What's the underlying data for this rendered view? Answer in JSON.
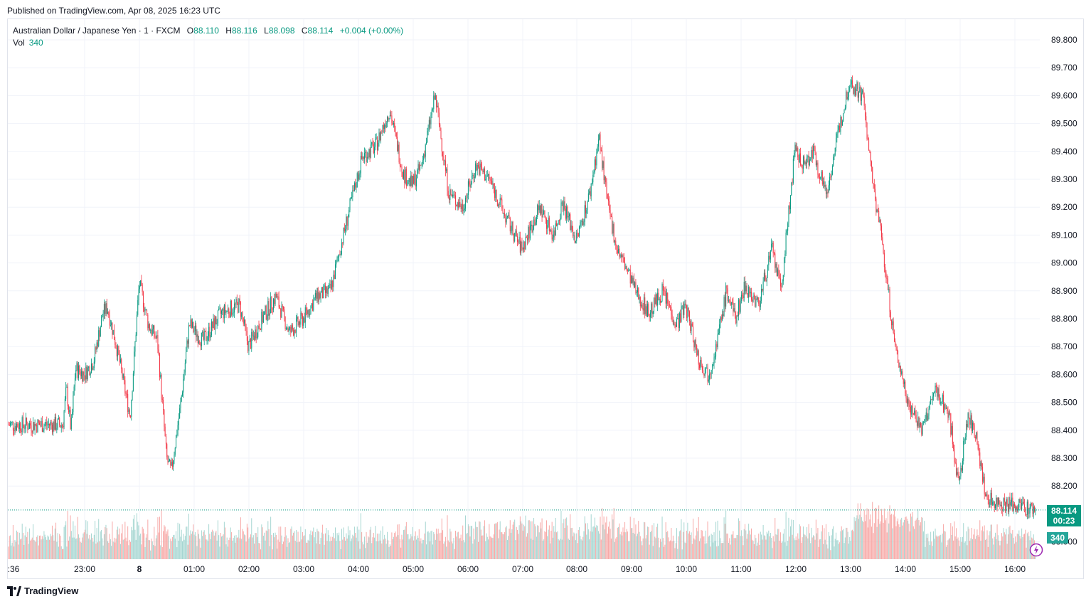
{
  "header": {
    "published": "Published on TradingView.com, Apr 08, 2025 16:23 UTC"
  },
  "legend": {
    "symbol": "Australian Dollar / Japanese Yen · 1 · FXCM",
    "open_label": "O",
    "open": "88.110",
    "high_label": "H",
    "high": "88.116",
    "low_label": "L",
    "low": "88.098",
    "close_label": "C",
    "close": "88.114",
    "change": "+0.004 (+0.00%)",
    "vol_label": "Vol",
    "vol": "340"
  },
  "footer": {
    "brand": "TradingView"
  },
  "price_tag": {
    "price": "88.114",
    "countdown": "00:23"
  },
  "vol_tag": "340",
  "colors": {
    "up": "#089981",
    "down": "#f23645",
    "vol_up": "#a5d6d1",
    "vol_down": "#f7a9a7",
    "grid": "#f0f3fa"
  },
  "chart_data": {
    "type": "candlestick",
    "y_axis": {
      "ylim": [
        88.0,
        89.85
      ],
      "ticks": [
        "89.800",
        "89.700",
        "89.600",
        "89.500",
        "89.400",
        "89.300",
        "89.200",
        "89.100",
        "89.000",
        "88.900",
        "88.800",
        "88.700",
        "88.600",
        "88.500",
        "88.400",
        "88.300",
        "88.200",
        "88.000"
      ],
      "position": "right"
    },
    "x_axis": {
      "ticks": [
        ":36",
        "23:00",
        "8",
        "01:00",
        "02:00",
        "03:00",
        "04:00",
        "05:00",
        "06:00",
        "07:00",
        "08:00",
        "09:00",
        "10:00",
        "11:00",
        "12:00",
        "13:00",
        "14:00",
        "15:00",
        "16:00"
      ]
    },
    "last_price": 88.114,
    "path": [
      [
        "22:36",
        88.42
      ],
      [
        "22:40",
        88.55
      ],
      [
        "22:45",
        88.4
      ],
      [
        "22:50",
        88.62
      ],
      [
        "23:00",
        88.6
      ],
      [
        "23:10",
        88.65
      ],
      [
        "23:20",
        88.82
      ],
      [
        "23:25",
        88.84
      ],
      [
        "23:35",
        88.7
      ],
      [
        "23:50",
        88.45
      ],
      [
        "00:00",
        88.93
      ],
      [
        "00:10",
        88.78
      ],
      [
        "00:20",
        88.72
      ],
      [
        "00:30",
        88.3
      ],
      [
        "00:35",
        88.25
      ],
      [
        "00:45",
        88.48
      ],
      [
        "00:55",
        88.78
      ],
      [
        "01:10",
        88.72
      ],
      [
        "01:30",
        88.82
      ],
      [
        "01:50",
        88.85
      ],
      [
        "02:00",
        88.7
      ],
      [
        "02:15",
        88.8
      ],
      [
        "02:30",
        88.88
      ],
      [
        "02:45",
        88.75
      ],
      [
        "03:00",
        88.8
      ],
      [
        "03:15",
        88.88
      ],
      [
        "03:30",
        88.9
      ],
      [
        "03:50",
        89.18
      ],
      [
        "04:05",
        89.38
      ],
      [
        "04:20",
        89.42
      ],
      [
        "04:35",
        89.55
      ],
      [
        "04:50",
        89.32
      ],
      [
        "05:00",
        89.28
      ],
      [
        "05:10",
        89.35
      ],
      [
        "05:25",
        89.6
      ],
      [
        "05:40",
        89.25
      ],
      [
        "05:55",
        89.2
      ],
      [
        "06:10",
        89.35
      ],
      [
        "06:25",
        89.3
      ],
      [
        "06:40",
        89.18
      ],
      [
        "07:00",
        89.05
      ],
      [
        "07:20",
        89.2
      ],
      [
        "07:35",
        89.1
      ],
      [
        "07:45",
        89.22
      ],
      [
        "08:00",
        89.08
      ],
      [
        "08:15",
        89.25
      ],
      [
        "08:25",
        89.45
      ],
      [
        "08:35",
        89.2
      ],
      [
        "08:45",
        89.05
      ],
      [
        "08:55",
        88.98
      ],
      [
        "09:05",
        88.9
      ],
      [
        "09:20",
        88.82
      ],
      [
        "09:35",
        88.9
      ],
      [
        "09:50",
        88.78
      ],
      [
        "10:00",
        88.85
      ],
      [
        "10:15",
        88.65
      ],
      [
        "10:25",
        88.6
      ],
      [
        "10:35",
        88.72
      ],
      [
        "10:45",
        88.9
      ],
      [
        "10:55",
        88.8
      ],
      [
        "11:05",
        88.92
      ],
      [
        "11:20",
        88.85
      ],
      [
        "11:35",
        89.05
      ],
      [
        "11:45",
        88.9
      ],
      [
        "12:00",
        89.4
      ],
      [
        "12:10",
        89.35
      ],
      [
        "12:20",
        89.4
      ],
      [
        "12:35",
        89.25
      ],
      [
        "12:45",
        89.42
      ],
      [
        "13:00",
        89.65
      ],
      [
        "13:15",
        89.6
      ],
      [
        "13:25",
        89.3
      ],
      [
        "13:35",
        89.1
      ],
      [
        "13:50",
        88.7
      ],
      [
        "14:05",
        88.5
      ],
      [
        "14:20",
        88.4
      ],
      [
        "14:35",
        88.55
      ],
      [
        "14:50",
        88.45
      ],
      [
        "15:00",
        88.2
      ],
      [
        "15:10",
        88.45
      ],
      [
        "15:20",
        88.38
      ],
      [
        "15:30",
        88.15
      ]
    ]
  }
}
